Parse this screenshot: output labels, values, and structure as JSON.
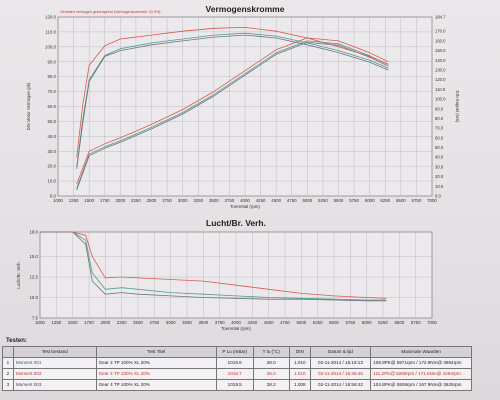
{
  "colors": {
    "series1": "#4f9e84",
    "series2": "#d8594f",
    "series3": "#6f7286",
    "grid": "#b3b0b6",
    "axis": "#555555"
  },
  "chart_data": [
    {
      "type": "line",
      "title": "Vermogenskromme",
      "subtitle": "Gemeten vermogen gekorrigeerd (Vermogenscorrectie: 22,9%)",
      "xlabel": "Toerental (rpm)",
      "ylabel": "DIN Motor Vermogen (pk)",
      "y2label": "DIN Koppel (Nm)",
      "xlim": [
        1000,
        7000
      ],
      "ylim": [
        0,
        120
      ],
      "y2lim": [
        0,
        184.7
      ],
      "xticks": [
        "1000",
        "1250",
        "1500",
        "1750",
        "2000",
        "2250",
        "2500",
        "2750",
        "3000",
        "3250",
        "3500",
        "3750",
        "4000",
        "4250",
        "4500",
        "4750",
        "5000",
        "5250",
        "5500",
        "5750",
        "6000",
        "6250",
        "6500",
        "6750",
        "7000"
      ],
      "yticks": [
        "0.0",
        "10.0",
        "20.0",
        "30.0",
        "40.0",
        "50.0",
        "60.0",
        "70.0",
        "80.0",
        "90.0",
        "100.0",
        "110.0",
        "120.0"
      ],
      "y2ticks": [
        "0.0",
        "10.0",
        "20.0",
        "30.0",
        "40.0",
        "50.0",
        "60.0",
        "70.0",
        "80.0",
        "90.0",
        "100.0",
        "110.0",
        "120.0",
        "130.0",
        "140.0",
        "150.0",
        "160.0",
        "170.0",
        "184.7"
      ],
      "grid": true,
      "series": [
        {
          "name": "Moment 001",
          "axis": "power",
          "x": [
            1300,
            1500,
            1750,
            2000,
            2500,
            3000,
            3500,
            4000,
            4500,
            5000,
            5500,
            5750,
            6000,
            6300
          ],
          "y": [
            5,
            28,
            33,
            37,
            46,
            56,
            68,
            82,
            96,
            104,
            102,
            98,
            94,
            88
          ]
        },
        {
          "name": "Moment 002",
          "axis": "power",
          "x": [
            1300,
            1500,
            1750,
            2000,
            2500,
            3000,
            3500,
            4000,
            4500,
            5000,
            5500,
            5750,
            6000,
            6300
          ],
          "y": [
            8,
            30,
            35,
            39,
            48,
            58,
            70,
            84,
            98,
            106,
            104,
            100,
            96,
            90
          ]
        },
        {
          "name": "Moment 003",
          "axis": "power",
          "x": [
            1300,
            1500,
            1750,
            2000,
            2500,
            3000,
            3500,
            4000,
            4500,
            5000,
            5500,
            5750,
            6000,
            6300
          ],
          "y": [
            4,
            27,
            32,
            36,
            45,
            55,
            67,
            81,
            95,
            103,
            101,
            97,
            93,
            87
          ]
        },
        {
          "name": "Moment 001",
          "axis": "torque",
          "x": [
            1300,
            1400,
            1500,
            1750,
            2000,
            2500,
            3000,
            3500,
            4000,
            4500,
            5000,
            5500,
            6000,
            6300
          ],
          "y": [
            30,
            80,
            120,
            145,
            152,
            158,
            162,
            166,
            168,
            165,
            158,
            150,
            140,
            132
          ]
        },
        {
          "name": "Moment 002",
          "axis": "torque",
          "x": [
            1300,
            1400,
            1500,
            1750,
            2000,
            2500,
            3000,
            3500,
            4000,
            4500,
            5000,
            5500,
            6000,
            6300
          ],
          "y": [
            40,
            95,
            135,
            155,
            162,
            166,
            170,
            173,
            174,
            170,
            163,
            154,
            144,
            136
          ]
        },
        {
          "name": "Moment 003",
          "axis": "torque",
          "x": [
            1300,
            1400,
            1500,
            1750,
            2000,
            2500,
            3000,
            3500,
            4000,
            4500,
            5000,
            5500,
            6000,
            6300
          ],
          "y": [
            28,
            76,
            118,
            144,
            150,
            156,
            160,
            164,
            166,
            163,
            156,
            148,
            138,
            130
          ]
        }
      ]
    },
    {
      "type": "line",
      "title": "Lucht/Br. Verh.",
      "xlabel": "Toerental (rpm)",
      "ylabel": "Lucht/Br. Verh.",
      "xlim": [
        1000,
        7000
      ],
      "ylim": [
        7.5,
        18.0
      ],
      "xticks": [
        "1000",
        "1250",
        "1500",
        "1750",
        "2000",
        "2250",
        "2500",
        "2750",
        "3000",
        "3250",
        "3500",
        "3750",
        "4000",
        "4250",
        "4500",
        "4750",
        "5000",
        "5250",
        "5500",
        "5750",
        "6000",
        "6250",
        "6500",
        "6750",
        "7000"
      ],
      "yticks": [
        "7.5",
        "10.0",
        "12.5",
        "15.0",
        "18.0"
      ],
      "grid": true,
      "series": [
        {
          "name": "Moment 001",
          "x": [
            1000,
            1500,
            1700,
            1800,
            2000,
            2250,
            2500,
            3000,
            3500,
            4000,
            4500,
            5000,
            5500,
            6000,
            6300
          ],
          "y": [
            18.0,
            18.0,
            17.0,
            13.0,
            11.0,
            11.2,
            11.0,
            10.6,
            10.4,
            10.2,
            10.0,
            9.9,
            9.8,
            9.7,
            9.7
          ]
        },
        {
          "name": "Moment 002",
          "x": [
            1000,
            1500,
            1700,
            1800,
            2000,
            2250,
            2500,
            3000,
            3500,
            4000,
            4500,
            5000,
            5500,
            6000,
            6300
          ],
          "y": [
            18.0,
            18.0,
            17.6,
            15.0,
            12.4,
            12.5,
            12.4,
            12.2,
            12.0,
            11.5,
            11.0,
            10.5,
            10.2,
            10.0,
            9.9
          ]
        },
        {
          "name": "Moment 003",
          "x": [
            1000,
            1500,
            1700,
            1800,
            2000,
            2250,
            2500,
            3000,
            3500,
            4000,
            4500,
            5000,
            5500,
            6000,
            6300
          ],
          "y": [
            18.0,
            18.0,
            16.5,
            12.0,
            10.4,
            10.6,
            10.4,
            10.2,
            10.0,
            9.9,
            9.8,
            9.8,
            9.7,
            9.6,
            9.6
          ]
        }
      ]
    }
  ],
  "tests": {
    "heading": "Testen:",
    "columns": [
      "",
      "Test bestand",
      "Test Titel",
      "P Lu (mBar)",
      "T lu (°C)",
      "DIN",
      "Datum & tijd",
      "Maximale Waarden"
    ],
    "rows": [
      {
        "idx": "1",
        "bestand": "Moment 001",
        "titel": "Gear 4 TP 100% XL 20%",
        "plu": "1018.6",
        "tlu": "28.0",
        "din": "1.010",
        "datum": "02-11-2014 / 16:18:13",
        "max": "108.8PK@ 5571rpm / 172.9Nm@ 3964rpm",
        "color": "#2a6a55"
      },
      {
        "idx": "2",
        "bestand": "Moment 002",
        "titel": "Gear 4 TP 100% XL 20%",
        "plu": "1018.7",
        "tlu": "28.0",
        "din": "1.010",
        "datum": "02-11-2014 / 16:48:45",
        "max": "111.2PK@ 5260rpm / 171.6Nm@ 4294rpm",
        "color": "#c0352b"
      },
      {
        "idx": "3",
        "bestand": "Moment 003",
        "titel": "Gear 4 TP 100% XL 20%",
        "plu": "1019.5",
        "tlu": "28.2",
        "din": "1.008",
        "datum": "02-11-2014 / 16:58:42",
        "max": "104.8PK@ 5506rpm / 167.9Nm@ 3625rpm",
        "color": "#444a66"
      }
    ]
  }
}
